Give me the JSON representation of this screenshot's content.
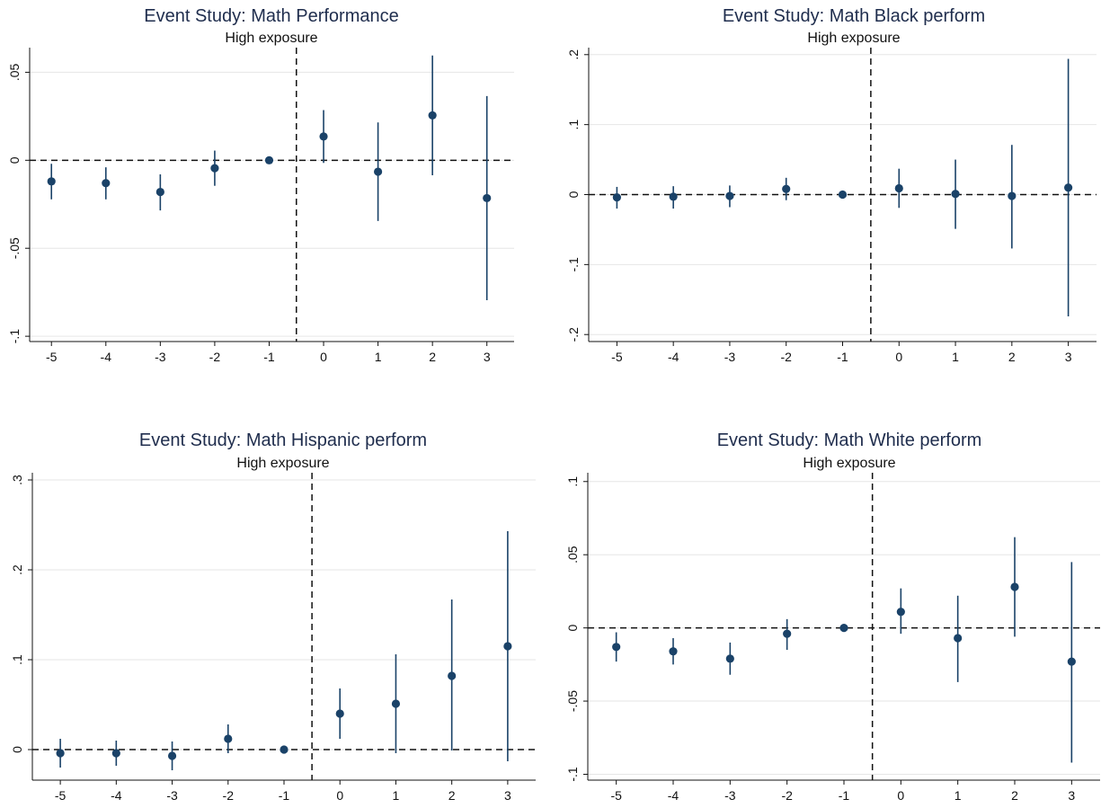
{
  "theme": {
    "marker": "#1a4268",
    "axis": "#111111",
    "grid": "#e6e6e6"
  },
  "chart_data": [
    {
      "type": "scatter",
      "title": "Event Study: Math Performance",
      "subtitle": "High exposure",
      "xlabel": "",
      "ylabel": "",
      "x": [
        -5,
        -4,
        -3,
        -2,
        -1,
        0,
        1,
        2,
        3
      ],
      "y": [
        -0.012,
        -0.013,
        -0.018,
        -0.0045,
        0.0,
        0.0135,
        -0.0065,
        0.0255,
        -0.0215
      ],
      "ci_low": [
        -0.0222,
        -0.0222,
        -0.0285,
        -0.0145,
        0.0,
        -0.0015,
        -0.0345,
        -0.0085,
        -0.0795
      ],
      "ci_high": [
        -0.002,
        -0.004,
        -0.008,
        0.0055,
        0.0,
        0.0285,
        0.0215,
        0.0595,
        0.0365
      ],
      "yticks": [
        -0.1,
        -0.05,
        0,
        0.05
      ],
      "ytick_labels": [
        "-.1",
        "-.05",
        "0",
        ".05"
      ],
      "xticks": [
        -5,
        -4,
        -3,
        -2,
        -1,
        0,
        1,
        2,
        3
      ],
      "xtick_labels": [
        "-5",
        "-4",
        "-3",
        "-2",
        "-1",
        "0",
        "1",
        "2",
        "3"
      ],
      "ylim": [
        -0.103,
        0.064
      ],
      "xlim": [
        -5.4,
        3.5
      ],
      "ref_y": 0,
      "ref_x": -0.5,
      "grid": true
    },
    {
      "type": "scatter",
      "title": "Event Study: Math Black perform",
      "subtitle": "High exposure",
      "xlabel": "",
      "ylabel": "",
      "x": [
        -5,
        -4,
        -3,
        -2,
        -1,
        0,
        1,
        2,
        3
      ],
      "y": [
        -0.004,
        -0.003,
        -0.002,
        0.008,
        0.0,
        0.009,
        0.001,
        -0.002,
        0.01
      ],
      "ci_low": [
        -0.02,
        -0.02,
        -0.018,
        -0.008,
        0.0,
        -0.019,
        -0.049,
        -0.077,
        -0.174
      ],
      "ci_high": [
        0.011,
        0.012,
        0.013,
        0.024,
        0.0,
        0.037,
        0.05,
        0.071,
        0.194
      ],
      "yticks": [
        -0.2,
        -0.1,
        0,
        0.1,
        0.2
      ],
      "ytick_labels": [
        "-.2",
        "-.1",
        "0",
        ".1",
        ".2"
      ],
      "xticks": [
        -5,
        -4,
        -3,
        -2,
        -1,
        0,
        1,
        2,
        3
      ],
      "xtick_labels": [
        "-5",
        "-4",
        "-3",
        "-2",
        "-1",
        "0",
        "1",
        "2",
        "3"
      ],
      "ylim": [
        -0.21,
        0.21
      ],
      "xlim": [
        -5.5,
        3.5
      ],
      "ref_y": 0,
      "ref_x": -0.5,
      "grid": true
    },
    {
      "type": "scatter",
      "title": "Event Study: Math Hispanic perform",
      "subtitle": "High exposure",
      "xlabel": "",
      "ylabel": "",
      "x": [
        -5,
        -4,
        -3,
        -2,
        -1,
        0,
        1,
        2,
        3
      ],
      "y": [
        -0.004,
        -0.004,
        -0.007,
        0.012,
        0.0,
        0.04,
        0.051,
        0.082,
        0.115
      ],
      "ci_low": [
        -0.02,
        -0.018,
        -0.023,
        -0.004,
        0.0,
        0.012,
        -0.004,
        -0.001,
        -0.013
      ],
      "ci_high": [
        0.012,
        0.01,
        0.009,
        0.028,
        0.0,
        0.068,
        0.106,
        0.167,
        0.243
      ],
      "yticks": [
        0,
        0.1,
        0.2,
        0.3
      ],
      "ytick_labels": [
        "0",
        ".1",
        ".2",
        ".3"
      ],
      "xticks": [
        -5,
        -4,
        -3,
        -2,
        -1,
        0,
        1,
        2,
        3
      ],
      "xtick_labels": [
        "-5",
        "-4",
        "-3",
        "-2",
        "-1",
        "0",
        "1",
        "2",
        "3"
      ],
      "ylim": [
        -0.034,
        0.308
      ],
      "xlim": [
        -5.5,
        3.5
      ],
      "ref_y": 0,
      "ref_x": -0.5,
      "grid": true
    },
    {
      "type": "scatter",
      "title": "Event Study: Math White perform",
      "subtitle": "High exposure",
      "xlabel": "",
      "ylabel": "",
      "x": [
        -5,
        -4,
        -3,
        -2,
        -1,
        0,
        1,
        2,
        3
      ],
      "y": [
        -0.013,
        -0.016,
        -0.021,
        -0.004,
        0.0,
        0.011,
        -0.007,
        0.028,
        -0.023
      ],
      "ci_low": [
        -0.023,
        -0.025,
        -0.032,
        -0.015,
        0.0,
        -0.004,
        -0.037,
        -0.006,
        -0.092
      ],
      "ci_high": [
        -0.003,
        -0.007,
        -0.01,
        0.006,
        0.0,
        0.027,
        0.022,
        0.062,
        0.045
      ],
      "yticks": [
        -0.1,
        -0.05,
        0,
        0.05,
        0.1
      ],
      "ytick_labels": [
        "-.1",
        "-.05",
        "0",
        ".05",
        ".1"
      ],
      "xticks": [
        -5,
        -4,
        -3,
        -2,
        -1,
        0,
        1,
        2,
        3
      ],
      "xtick_labels": [
        "-5",
        "-4",
        "-3",
        "-2",
        "-1",
        "0",
        "1",
        "2",
        "3"
      ],
      "ylim": [
        -0.104,
        0.106
      ],
      "xlim": [
        -5.5,
        3.5
      ],
      "ref_y": 0,
      "ref_x": -0.5,
      "grid": true
    }
  ]
}
